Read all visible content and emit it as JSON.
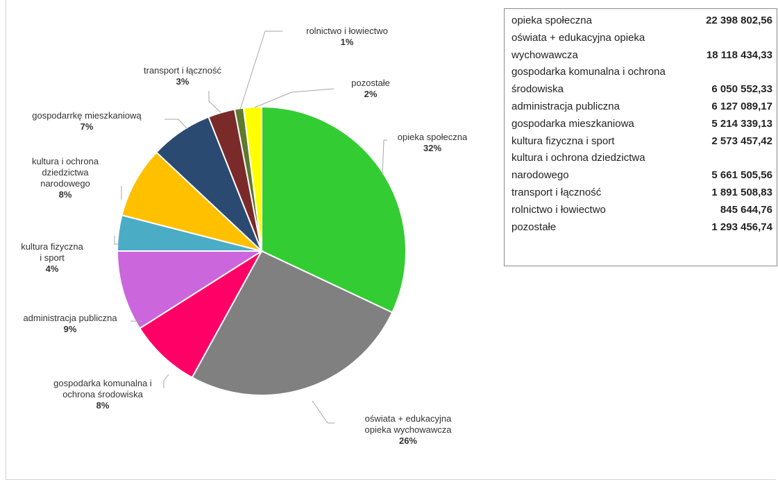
{
  "chart_data": {
    "type": "pie",
    "title": "",
    "slices": [
      {
        "name": "opieka społeczna",
        "percent": 32,
        "pct_label": "32%",
        "color": "#33CC33"
      },
      {
        "name": "oświata + edukacyjna opieka wychowawcza",
        "percent": 26,
        "pct_label": "26%",
        "color": "#808080"
      },
      {
        "name": "gospodarka komunalna i ochrona środowiska",
        "percent": 8,
        "pct_label": "8%",
        "color": "#FF0066"
      },
      {
        "name": "administracja publiczna",
        "percent": 9,
        "pct_label": "9%",
        "color": "#CC66DD"
      },
      {
        "name": "kultura fizyczna i sport",
        "percent": 4,
        "pct_label": "4%",
        "color": "#4BACC6"
      },
      {
        "name": "kultura i ochrona dziedzictwa narodowego",
        "percent": 8,
        "pct_label": "8%",
        "color": "#FFC000"
      },
      {
        "name": "gospodarrkę mieszkaniową",
        "percent": 7,
        "pct_label": "7%",
        "color": "#2B4A72"
      },
      {
        "name": "transport i łączność",
        "percent": 3,
        "pct_label": "3%",
        "color": "#7B2A2A"
      },
      {
        "name": "rolnictwo i łowiectwo",
        "percent": 1,
        "pct_label": "1%",
        "color": "#5E7A2E"
      },
      {
        "name": "pozostałe",
        "percent": 2,
        "pct_label": "2%",
        "color": "#FFFF00"
      }
    ],
    "labels": [
      {
        "lines": [
          "opieka społeczna"
        ],
        "pct": "32%"
      },
      {
        "lines": [
          "oświata + edukacyjna",
          "opieka wychowawcza"
        ],
        "pct": "26%"
      },
      {
        "lines": [
          "gospodarka komunalna i",
          "ochrona środowiska"
        ],
        "pct": "8%"
      },
      {
        "lines": [
          "administracja publiczna"
        ],
        "pct": "9%"
      },
      {
        "lines": [
          "kultura fizyczna",
          "i sport"
        ],
        "pct": "4%"
      },
      {
        "lines": [
          "kultura i ochrona",
          "dziedzictwa",
          "narodowego"
        ],
        "pct": "8%"
      },
      {
        "lines": [
          "gospodarrkę mieszkaniową"
        ],
        "pct": "7%"
      },
      {
        "lines": [
          "transport i łączność"
        ],
        "pct": "3%"
      },
      {
        "lines": [
          "rolnictwo i łowiectwo"
        ],
        "pct": "1%"
      },
      {
        "lines": [
          "pozostałe"
        ],
        "pct": "2%"
      }
    ]
  },
  "table": {
    "rows": [
      {
        "name": "opieka społeczna",
        "value": "22 398 802,56"
      },
      {
        "name": "oświata + edukacyjna opieka",
        "value": ""
      },
      {
        "name": "wychowawcza",
        "value": "18 118 434,33"
      },
      {
        "name": "gospodarka komunalna i ochrona",
        "value": ""
      },
      {
        "name": "środowiska",
        "value": "6 050 552,33"
      },
      {
        "name": "administracja publiczna",
        "value": "6 127 089,17"
      },
      {
        "name": "gospodarka mieszkaniowa",
        "value": "5 214 339,13"
      },
      {
        "name": " kultura fizyczna i sport",
        "value": "2 573 457,42"
      },
      {
        "name": "kultura i ochrona dziedzictwa",
        "value": ""
      },
      {
        "name": "narodowego",
        "value": "5 661 505,56"
      },
      {
        "name": "transport i łączność",
        "value": "1 891 508,83"
      },
      {
        "name": "rolnictwo i łowiectwo",
        "value": "845 644,76"
      },
      {
        "name": "pozostałe",
        "value": "1 293 456,74"
      }
    ]
  }
}
